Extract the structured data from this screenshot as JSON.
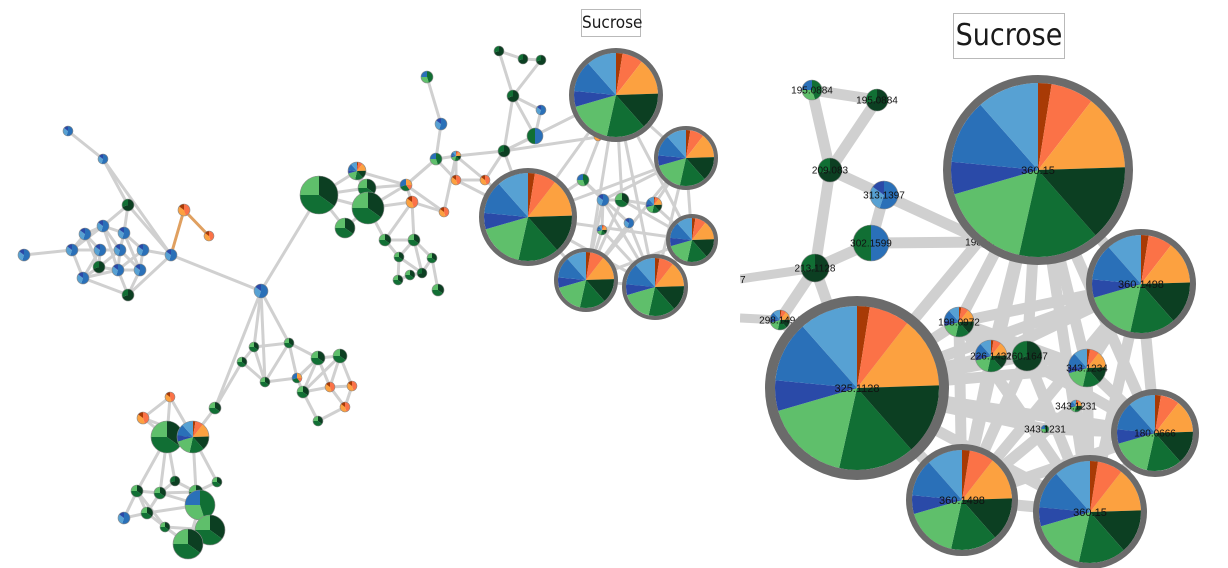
{
  "overview": {
    "title": "Sucrose"
  },
  "zoomed": {
    "title": "Sucrose"
  },
  "colors": {
    "edge": "#d0d0d0",
    "edge_orange": "#e0a060",
    "ring": "#6b6b6b",
    "slices": [
      "#a83a05",
      "#fb7247",
      "#fca140",
      "#0c3f22",
      "#116f34",
      "#5fbf6b",
      "#2a4aa8",
      "#2a70b8",
      "#57a1d3"
    ]
  },
  "zoomed_labels": [
    "195.0884",
    "195.0884",
    "209.083",
    "313.1397",
    "302.1599",
    "198.0971",
    "213.1128",
    "298.1494",
    "198.0972",
    "360.15",
    "360.1498",
    "226.1431",
    "260.1647",
    "343.1234",
    "343.1231",
    "343.1231",
    "180.0666",
    "325.1128",
    "360.1498",
    "360.15"
  ]
}
